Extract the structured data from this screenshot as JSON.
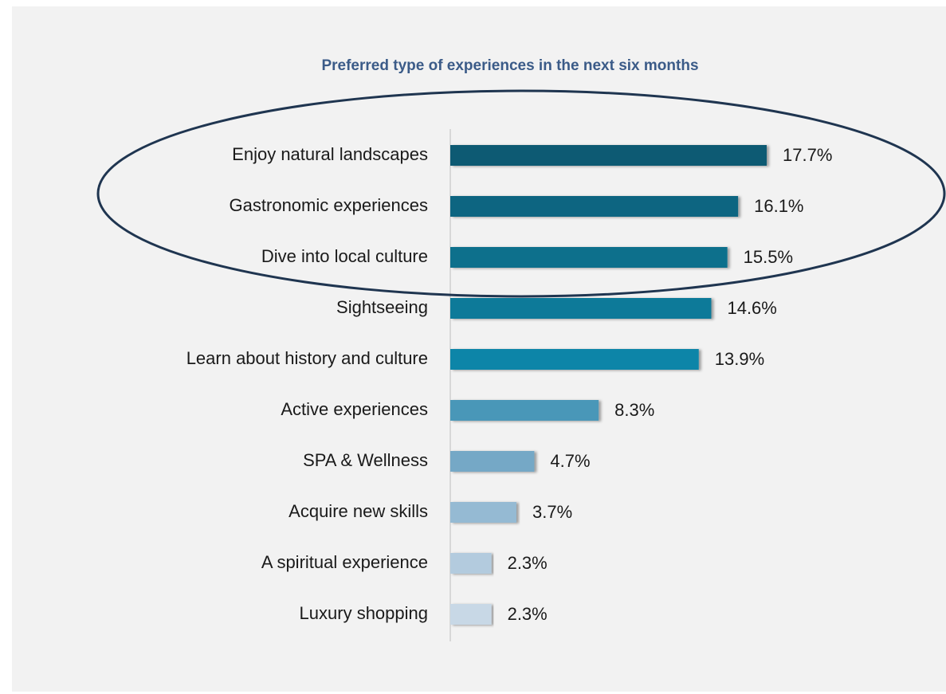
{
  "chart_data": {
    "type": "hbar",
    "title": "Preferred type of experiences in the next six months",
    "categories": [
      "Enjoy natural landscapes",
      "Gastronomic experiences",
      "Dive into local culture",
      "Sightseeing",
      "Learn about history and culture",
      "Active experiences",
      "SPA & Wellness",
      "Acquire new skills",
      "A spiritual experience",
      "Luxury shopping"
    ],
    "values": [
      17.7,
      16.1,
      15.5,
      14.6,
      13.9,
      8.3,
      4.7,
      3.7,
      2.3,
      2.3
    ],
    "value_labels": [
      "17.7%",
      "16.1%",
      "15.5%",
      "14.6%",
      "13.9%",
      "8.3%",
      "4.7%",
      "3.7%",
      "2.3%",
      "2.3%"
    ],
    "colors": [
      "#0b5a73",
      "#0a6581",
      "#0c6f8c",
      "#0e7a99",
      "#1185a8",
      "#4a97b8",
      "#74a8c6",
      "#95bad3",
      "#b3cbde",
      "#c8d8e6"
    ]
  }
}
